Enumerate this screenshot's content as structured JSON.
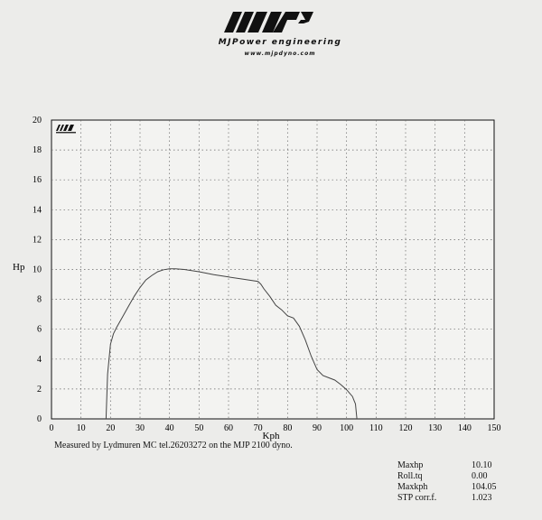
{
  "header": {
    "logo_text": "MJP",
    "brand_name": "MJPower engineering",
    "url": "www.mjpdyno.com"
  },
  "chart_data": {
    "type": "line",
    "title": "",
    "xlabel": "Kph",
    "ylabel": "Hp",
    "xlim": [
      0,
      150
    ],
    "ylim": [
      0,
      20
    ],
    "x_ticks": [
      "0",
      "10",
      "20",
      "30",
      "40",
      "50",
      "60",
      "70",
      "80",
      "90",
      "100",
      "110",
      "120",
      "130",
      "140",
      "150"
    ],
    "y_ticks": [
      "0",
      "2",
      "4",
      "6",
      "8",
      "10",
      "12",
      "14",
      "16",
      "18",
      "20"
    ],
    "grid": true,
    "series": [
      {
        "color": "#444444",
        "x": [
          18.5,
          19,
          20,
          21,
          22,
          24,
          26,
          28,
          30,
          32,
          34,
          36,
          38,
          40,
          42,
          45,
          50,
          55,
          60,
          65,
          70,
          71,
          72,
          74,
          76,
          78,
          80,
          82,
          84,
          86,
          88,
          90,
          92,
          94,
          96,
          98,
          100,
          102,
          102.5,
          103,
          103.5
        ],
        "y": [
          0.0,
          3.0,
          5.0,
          5.7,
          6.1,
          6.8,
          7.5,
          8.2,
          8.8,
          9.3,
          9.6,
          9.85,
          9.98,
          10.05,
          10.05,
          10.0,
          9.85,
          9.65,
          9.5,
          9.35,
          9.2,
          9.0,
          8.7,
          8.2,
          7.6,
          7.3,
          6.9,
          6.75,
          6.2,
          5.3,
          4.2,
          3.3,
          2.9,
          2.75,
          2.6,
          2.3,
          1.95,
          1.5,
          1.25,
          1.0,
          0.0
        ]
      }
    ],
    "caption": "Measured by Lydmuren MC tel.26203272 on the MJP 2100 dyno.",
    "stats": [
      {
        "label": "Maxhp",
        "value": "10.10"
      },
      {
        "label": "Roll.tq",
        "value": "0.00"
      },
      {
        "label": "Maxkph",
        "value": "104.05"
      },
      {
        "label": "STP corr.f.",
        "value": "1.023"
      }
    ]
  }
}
